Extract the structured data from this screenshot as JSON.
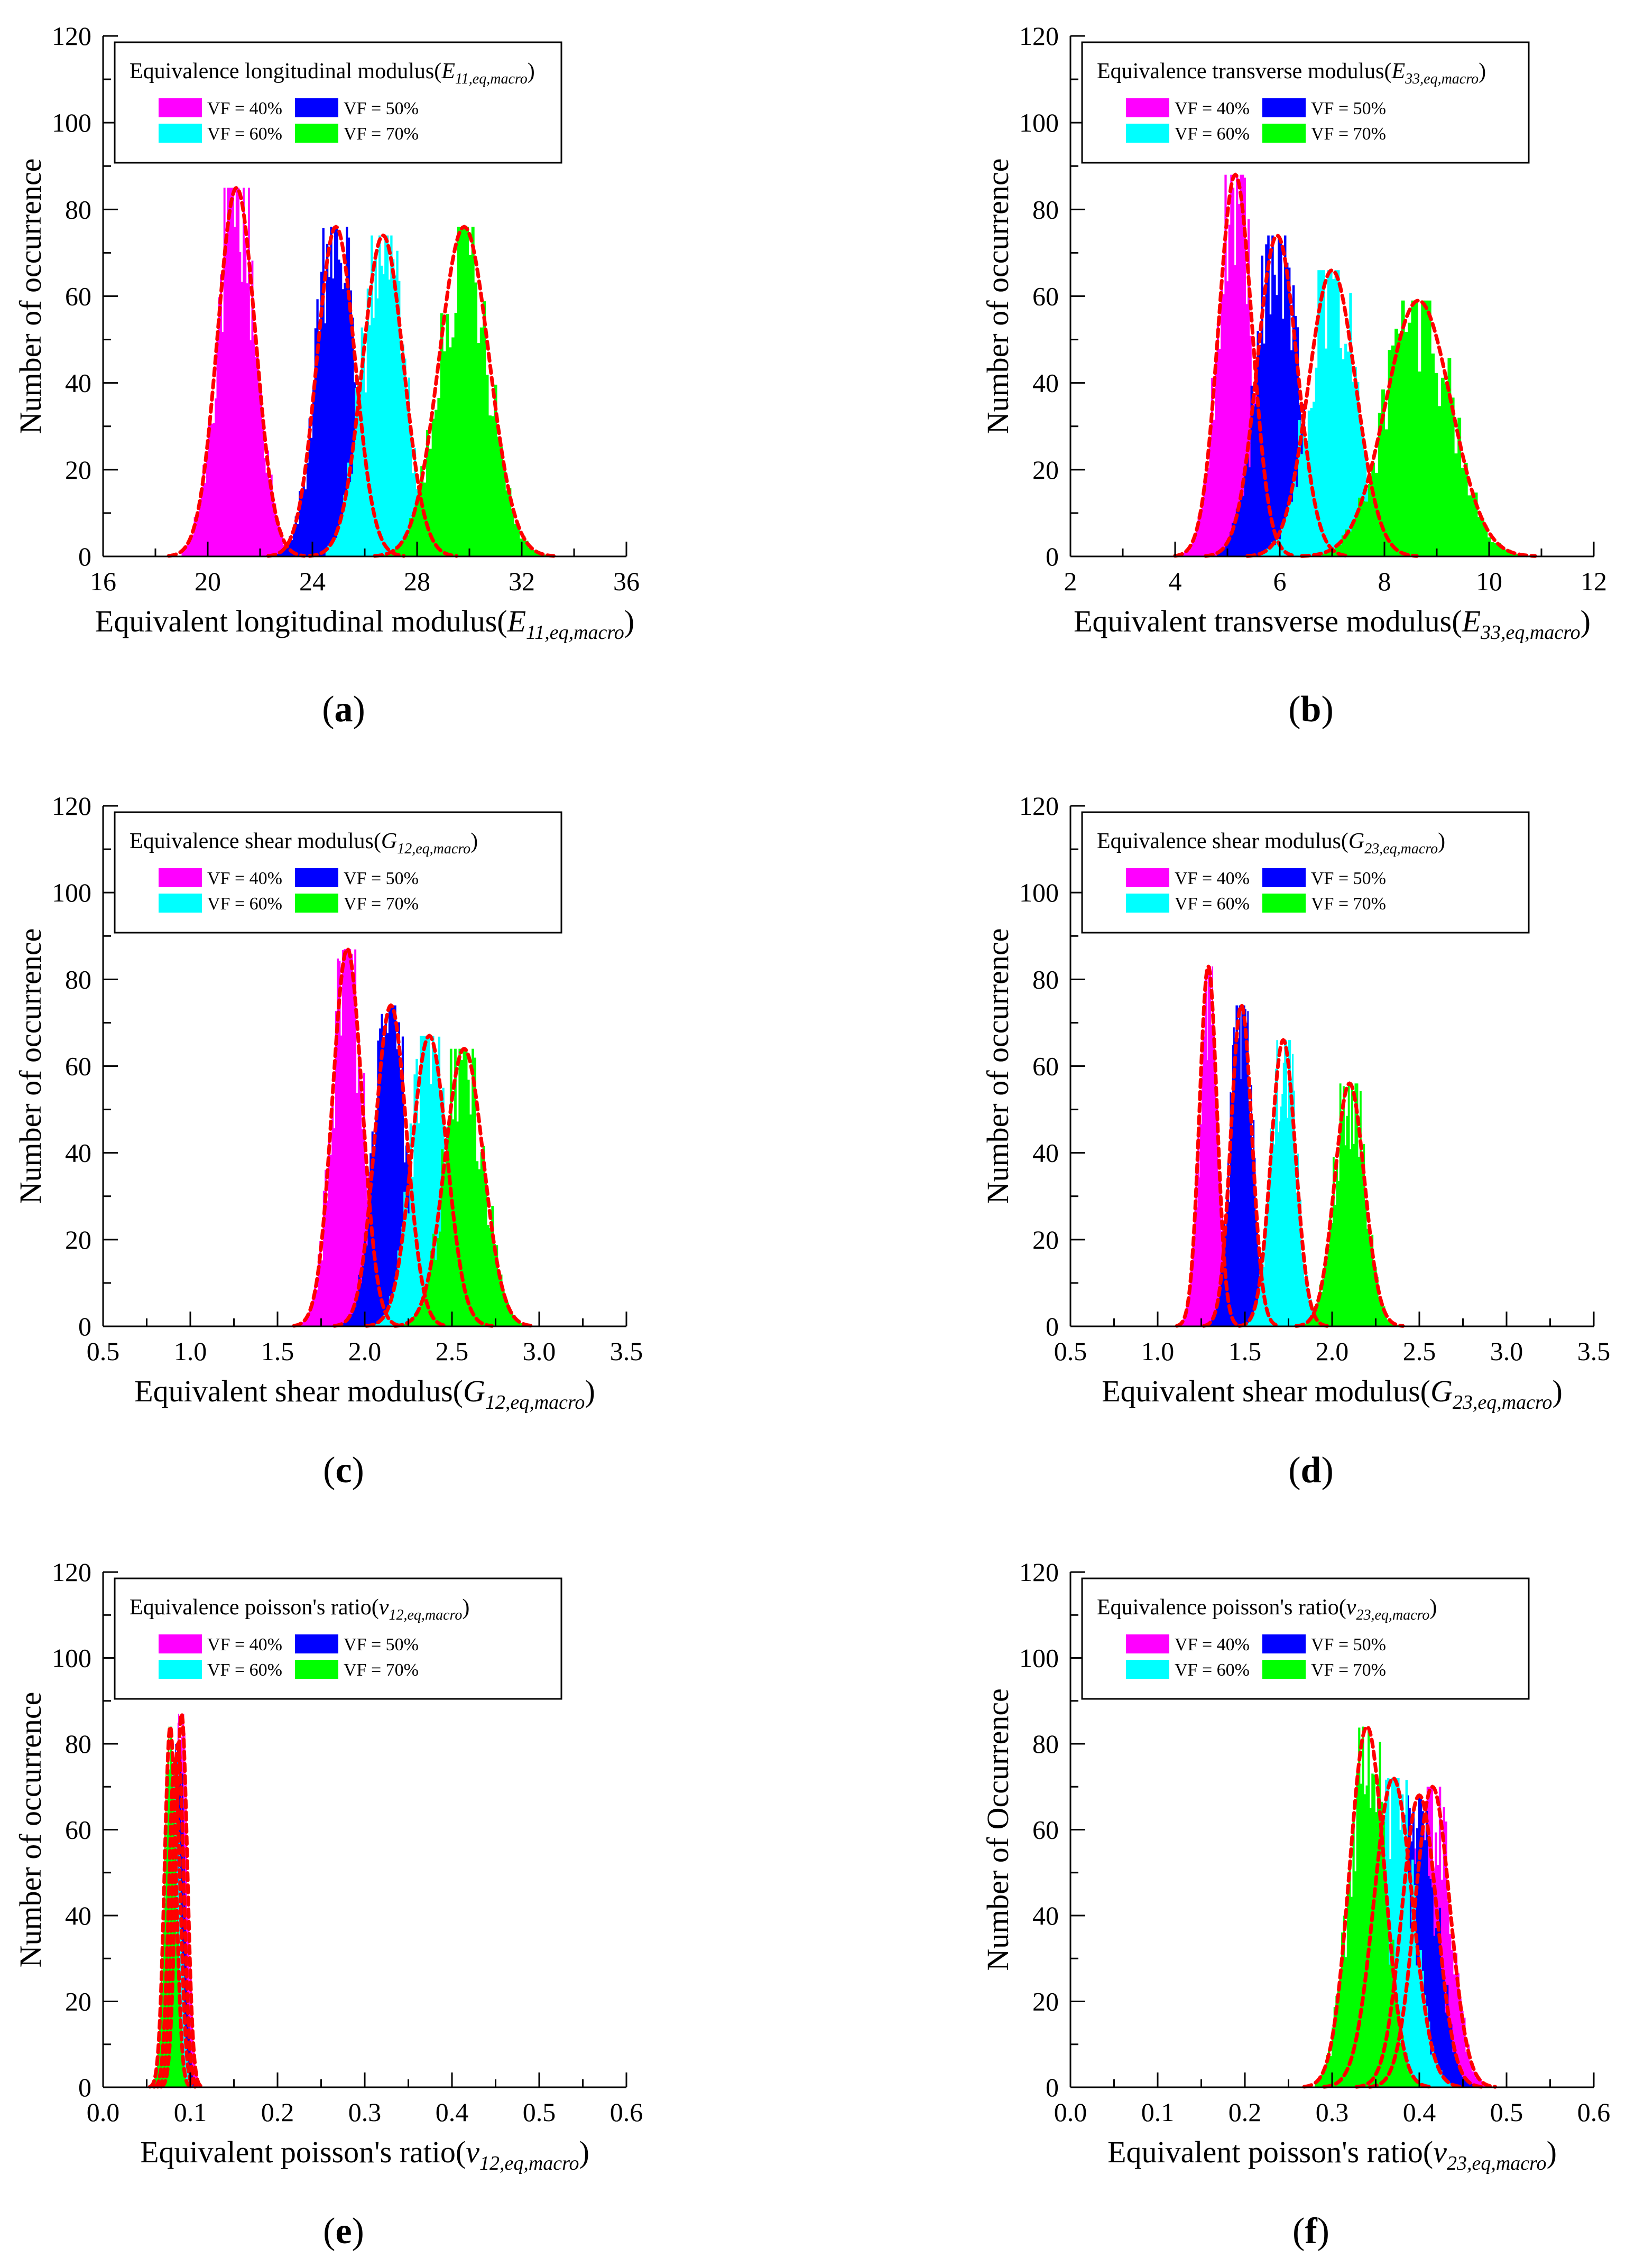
{
  "figure": {
    "legend_labels": [
      "VF = 40%",
      "VF = 50%",
      "VF = 60%",
      "VF = 70%"
    ],
    "legend_colors": [
      "#ff00ff",
      "#0000ff",
      "#00ffff",
      "#00ff00"
    ],
    "fit_color": "#ff0000",
    "panel_labels": [
      "(a)",
      "(b)",
      "(c)",
      "(d)",
      "(e)",
      "(f)"
    ]
  },
  "chart_data": [
    {
      "panel": "(a)",
      "type": "histogram",
      "title_text": "Equivalence longitudinal modulus(",
      "title_sub": "E",
      "title_subscript": "11,eq,macro",
      "title_close": ")",
      "xlabel_text": "Equivalent longitudinal modulus(",
      "xlabel_var": "E",
      "xlabel_sub": "11,eq,macro",
      "xlabel_close": ")",
      "ylabel": "Number of occurrence",
      "xlim": [
        16,
        36
      ],
      "ylim": [
        0,
        120
      ],
      "xticks": [
        16,
        20,
        24,
        28,
        32,
        36
      ],
      "xtick_labels": [
        "16",
        "20",
        "24",
        "28",
        "32",
        "36"
      ],
      "yticks": [
        0,
        20,
        40,
        60,
        80,
        100,
        120
      ],
      "ytick_labels": [
        "0",
        "20",
        "40",
        "60",
        "80",
        "100",
        "120"
      ],
      "series": [
        {
          "name": "VF = 40%",
          "mean": 21.1,
          "std": 0.72,
          "peak": 85,
          "range": [
            19.0,
            23.0
          ]
        },
        {
          "name": "VF = 50%",
          "mean": 24.9,
          "std": 0.72,
          "peak": 76,
          "range": [
            22.5,
            27.0
          ]
        },
        {
          "name": "VF = 60%",
          "mean": 26.7,
          "std": 0.78,
          "peak": 74,
          "range": [
            24.5,
            29.0
          ]
        },
        {
          "name": "VF = 70%",
          "mean": 29.8,
          "std": 0.95,
          "peak": 76,
          "range": [
            26.5,
            33.0
          ]
        }
      ]
    },
    {
      "panel": "(b)",
      "type": "histogram",
      "title_text": "Equivalence transverse modulus(",
      "title_sub": "E",
      "title_subscript": "33,eq,macro",
      "title_close": ")",
      "xlabel_text": "Equivalent transverse modulus(",
      "xlabel_var": "E",
      "xlabel_sub": "33,eq,macro",
      "xlabel_close": ")",
      "ylabel": "Number of occurrence",
      "xlim": [
        2,
        12
      ],
      "ylim": [
        0,
        120
      ],
      "xticks": [
        2,
        4,
        6,
        8,
        10,
        12
      ],
      "xtick_labels": [
        "2",
        "4",
        "6",
        "8",
        "10",
        "12"
      ],
      "yticks": [
        0,
        20,
        40,
        60,
        80,
        100,
        120
      ],
      "ytick_labels": [
        "0",
        "20",
        "40",
        "60",
        "80",
        "100",
        "120"
      ],
      "series": [
        {
          "name": "VF = 40%",
          "mean": 5.15,
          "std": 0.32,
          "peak": 88,
          "range": [
            4.1,
            6.3
          ]
        },
        {
          "name": "VF = 50%",
          "mean": 5.95,
          "std": 0.38,
          "peak": 74,
          "range": [
            4.8,
            7.2
          ]
        },
        {
          "name": "VF = 60%",
          "mean": 7.0,
          "std": 0.45,
          "peak": 66,
          "range": [
            5.6,
            8.4
          ]
        },
        {
          "name": "VF = 70%",
          "mean": 8.65,
          "std": 0.62,
          "peak": 59,
          "range": [
            6.8,
            10.6
          ]
        }
      ]
    },
    {
      "panel": "(c)",
      "type": "histogram",
      "title_text": "Equivalence shear modulus(",
      "title_sub": "G",
      "title_subscript": "12,eq,macro",
      "title_close": ")",
      "xlabel_text": "Equivalent shear modulus(",
      "xlabel_var": "G",
      "xlabel_sub": "12,eq,macro",
      "xlabel_close": ")",
      "ylabel": "Number of occurrence",
      "xlim": [
        0.5,
        3.5
      ],
      "ylim": [
        0,
        120
      ],
      "xticks": [
        0.5,
        1.0,
        1.5,
        2.0,
        2.5,
        3.0,
        3.5
      ],
      "xtick_labels": [
        "0.5",
        "1.0",
        "1.5",
        "2.0",
        "2.5",
        "3.0",
        "3.5"
      ],
      "yticks": [
        0,
        20,
        40,
        60,
        80,
        100,
        120
      ],
      "ytick_labels": [
        "0",
        "20",
        "40",
        "60",
        "80",
        "100",
        "120"
      ],
      "series": [
        {
          "name": "VF = 40%",
          "mean": 1.9,
          "std": 0.085,
          "peak": 87,
          "range": [
            1.6,
            2.2
          ]
        },
        {
          "name": "VF = 50%",
          "mean": 2.15,
          "std": 0.09,
          "peak": 74,
          "range": [
            1.8,
            2.45
          ]
        },
        {
          "name": "VF = 60%",
          "mean": 2.37,
          "std": 0.1,
          "peak": 67,
          "range": [
            2.0,
            2.7
          ]
        },
        {
          "name": "VF = 70%",
          "mean": 2.57,
          "std": 0.11,
          "peak": 64,
          "range": [
            2.2,
            2.95
          ]
        }
      ]
    },
    {
      "panel": "(d)",
      "type": "histogram",
      "title_text": "Equivalence shear modulus(",
      "title_sub": "G",
      "title_subscript": "23,eq,macro",
      "title_close": ")",
      "xlabel_text": "Equivalent shear modulus(",
      "xlabel_var": "G",
      "xlabel_sub": "23,eq,macro",
      "xlabel_close": ")",
      "ylabel": "Number of occurrence",
      "xlim": [
        0.5,
        3.5
      ],
      "ylim": [
        0,
        120
      ],
      "xticks": [
        0.5,
        1.0,
        1.5,
        2.0,
        2.5,
        3.0,
        3.5
      ],
      "xtick_labels": [
        "0.5",
        "1.0",
        "1.5",
        "2.0",
        "2.5",
        "3.0",
        "3.5"
      ],
      "yticks": [
        0,
        20,
        40,
        60,
        80,
        100,
        120
      ],
      "ytick_labels": [
        "0",
        "20",
        "40",
        "60",
        "80",
        "100",
        "120"
      ],
      "series": [
        {
          "name": "VF = 40%",
          "mean": 1.29,
          "std": 0.05,
          "peak": 83,
          "range": [
            1.1,
            1.45
          ]
        },
        {
          "name": "VF = 50%",
          "mean": 1.48,
          "std": 0.06,
          "peak": 74,
          "range": [
            1.28,
            1.68
          ]
        },
        {
          "name": "VF = 60%",
          "mean": 1.72,
          "std": 0.07,
          "peak": 66,
          "range": [
            1.5,
            1.95
          ]
        },
        {
          "name": "VF = 70%",
          "mean": 2.1,
          "std": 0.085,
          "peak": 56,
          "range": [
            1.8,
            2.38
          ]
        }
      ]
    },
    {
      "panel": "(e)",
      "type": "histogram",
      "title_text": "Equivalence poisson's ratio(",
      "title_sub": "v",
      "title_subscript": "12,eq,macro",
      "title_close": ")",
      "xlabel_text": "Equivalent poisson's ratio(",
      "xlabel_var": "v",
      "xlabel_sub": "12,eq,macro",
      "xlabel_close": ")",
      "ylabel": "Number of occurrence",
      "xlim": [
        0.0,
        0.6
      ],
      "ylim": [
        0,
        120
      ],
      "xticks": [
        0.0,
        0.1,
        0.2,
        0.3,
        0.4,
        0.5,
        0.6
      ],
      "xtick_labels": [
        "0.0",
        "0.1",
        "0.2",
        "0.3",
        "0.4",
        "0.5",
        "0.6"
      ],
      "yticks": [
        0,
        20,
        40,
        60,
        80,
        100,
        120
      ],
      "ytick_labels": [
        "0",
        "20",
        "40",
        "60",
        "80",
        "100",
        "120"
      ],
      "series": [
        {
          "name": "VF = 40%",
          "mean": 0.09,
          "std": 0.0065,
          "peak": 87,
          "range": [
            0.07,
            0.11
          ]
        },
        {
          "name": "VF = 50%",
          "mean": 0.086,
          "std": 0.0065,
          "peak": 80,
          "range": [
            0.066,
            0.106
          ]
        },
        {
          "name": "VF = 60%",
          "mean": 0.082,
          "std": 0.0065,
          "peak": 76,
          "range": [
            0.062,
            0.102
          ]
        },
        {
          "name": "VF = 70%",
          "mean": 0.077,
          "std": 0.0065,
          "peak": 84,
          "range": [
            0.057,
            0.097
          ]
        }
      ]
    },
    {
      "panel": "(f)",
      "type": "histogram",
      "title_text": "Equivalence poisson's ratio(",
      "title_sub": "v",
      "title_subscript": "23,eq,macro",
      "title_close": ")",
      "xlabel_text": "Equivalent poisson's ratio(",
      "xlabel_var": "v",
      "xlabel_sub": "23,eq,macro",
      "xlabel_close": ")",
      "ylabel": "Number of Occurrence",
      "xlim": [
        0.0,
        0.6
      ],
      "ylim": [
        0,
        120
      ],
      "xticks": [
        0.0,
        0.1,
        0.2,
        0.3,
        0.4,
        0.5,
        0.6
      ],
      "xtick_labels": [
        "0.0",
        "0.1",
        "0.2",
        "0.3",
        "0.4",
        "0.5",
        "0.6"
      ],
      "yticks": [
        0,
        20,
        40,
        60,
        80,
        100,
        120
      ],
      "ytick_labels": [
        "0",
        "20",
        "40",
        "60",
        "80",
        "100",
        "120"
      ],
      "series": [
        {
          "name": "VF = 40%",
          "mean": 0.415,
          "std": 0.02,
          "peak": 70,
          "range": [
            0.35,
            0.49
          ]
        },
        {
          "name": "VF = 50%",
          "mean": 0.4,
          "std": 0.02,
          "peak": 68,
          "range": [
            0.34,
            0.47
          ]
        },
        {
          "name": "VF = 60%",
          "mean": 0.37,
          "std": 0.022,
          "peak": 72,
          "range": [
            0.3,
            0.44
          ]
        },
        {
          "name": "VF = 70%",
          "mean": 0.34,
          "std": 0.02,
          "peak": 84,
          "range": [
            0.28,
            0.41
          ]
        }
      ]
    }
  ]
}
